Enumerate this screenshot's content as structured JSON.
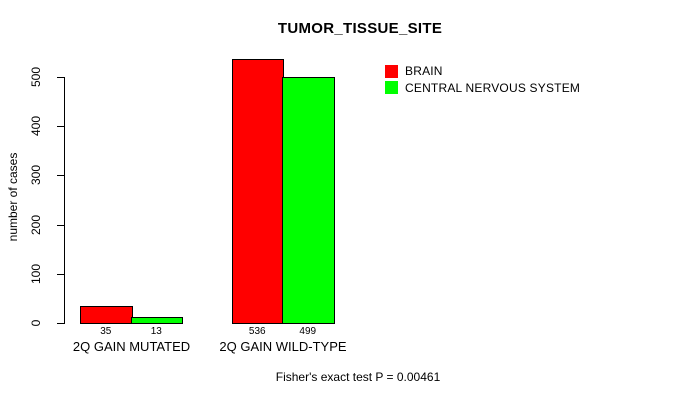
{
  "title": "TUMOR_TISSUE_SITE",
  "footer": "Fisher's exact test P = 0.00461",
  "chart_data": {
    "type": "bar",
    "title": "TUMOR_TISSUE_SITE",
    "categories": [
      "2Q GAIN MUTATED",
      "2Q GAIN WILD-TYPE"
    ],
    "series": [
      {
        "name": "BRAIN",
        "color": "#ff0000",
        "values": [
          35,
          536
        ]
      },
      {
        "name": "CENTRAL NERVOUS SYSTEM",
        "color": "#00ff00",
        "values": [
          13,
          499
        ]
      }
    ],
    "bar_value_labels": [
      [
        35,
        13
      ],
      [
        536,
        499
      ]
    ],
    "xlabel": "",
    "ylabel": "number of cases",
    "ylim": [
      0,
      500
    ],
    "yticks": [
      0,
      100,
      200,
      300,
      400,
      500
    ],
    "grid": false,
    "legend_position": "right-of-plot",
    "annotation": "Fisher's exact test P = 0.00461"
  }
}
